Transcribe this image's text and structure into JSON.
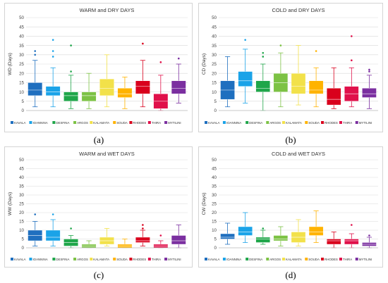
{
  "panel_labels": [
    "(a)",
    "(b)",
    "(c)",
    "(d)"
  ],
  "legend_colors": [
    "#1f6fbf",
    "#1aa3e8",
    "#1fa64a",
    "#7cc244",
    "#f2e14a",
    "#ffb300",
    "#d9001c",
    "#e0104a",
    "#7b2fa0"
  ],
  "chart_data": [
    {
      "type": "box",
      "title": "WARM and DRY DAYS",
      "ylabel": "WD (Days)",
      "ylim": [
        0,
        50
      ],
      "yticks": [
        "0",
        "5",
        "10",
        "15",
        "20",
        "25",
        "30",
        "35",
        "40",
        "45",
        "50"
      ],
      "categories": [
        "KAVALA",
        "IOANNINA",
        "DESFINA",
        "ARGOS",
        "KALAMATA",
        "SOUDA",
        "RHODES",
        "THIRA",
        "MYTILINI"
      ],
      "grid": true,
      "legend": "bottom",
      "boxes": [
        {
          "min": 2,
          "q1": 8,
          "median": 11,
          "q3": 15,
          "max": 27,
          "outliers": [
            30,
            32
          ]
        },
        {
          "min": 2,
          "q1": 8,
          "median": 10,
          "q3": 13,
          "max": 23,
          "outliers": [
            29,
            32,
            38
          ]
        },
        {
          "min": 1,
          "q1": 5,
          "median": 8,
          "q3": 10,
          "max": 19,
          "outliers": [
            21,
            35
          ]
        },
        {
          "min": 1,
          "q1": 5,
          "median": 8,
          "q3": 10,
          "max": 20,
          "outliers": []
        },
        {
          "min": 2,
          "q1": 8,
          "median": 12,
          "q3": 17,
          "max": 30,
          "outliers": []
        },
        {
          "min": 1,
          "q1": 7,
          "median": 9,
          "q3": 12,
          "max": 18,
          "outliers": []
        },
        {
          "min": 2,
          "q1": 9,
          "median": 13,
          "q3": 16,
          "max": 27,
          "outliers": [
            36
          ]
        },
        {
          "min": 0,
          "q1": 1,
          "median": 5,
          "q3": 9,
          "max": 19,
          "outliers": [
            26
          ]
        },
        {
          "min": 4,
          "q1": 9,
          "median": 12,
          "q3": 16,
          "max": 25,
          "outliers": [
            28
          ]
        }
      ]
    },
    {
      "type": "box",
      "title": "COLD and DRY DAYS",
      "ylabel": "CD (Days)",
      "ylim": [
        0,
        50
      ],
      "yticks": [
        "0",
        "5",
        "10",
        "15",
        "20",
        "25",
        "30",
        "35",
        "40",
        "45",
        "50"
      ],
      "categories": [
        "KAVALA",
        "IOANNINA",
        "DESFINA",
        "ARGOS",
        "KALAMATA",
        "SOUDA",
        "RHODES",
        "THIRA",
        "MYTILINI"
      ],
      "grid": true,
      "legend": "bottom",
      "boxes": [
        {
          "min": 2,
          "q1": 6,
          "median": 11,
          "q3": 16,
          "max": 29,
          "outliers": []
        },
        {
          "min": 4,
          "q1": 13,
          "median": 16,
          "q3": 21,
          "max": 33,
          "outliers": [
            38
          ]
        },
        {
          "min": 0,
          "q1": 10,
          "median": 12,
          "q3": 16,
          "max": 25,
          "outliers": [
            29,
            31
          ]
        },
        {
          "min": 2,
          "q1": 10,
          "median": 15,
          "q3": 20,
          "max": 31,
          "outliers": [
            35
          ]
        },
        {
          "min": 3,
          "q1": 9,
          "median": 13,
          "q3": 20,
          "max": 35,
          "outliers": []
        },
        {
          "min": 2,
          "q1": 9,
          "median": 11,
          "q3": 16,
          "max": 23,
          "outliers": [
            32
          ]
        },
        {
          "min": 1,
          "q1": 3,
          "median": 6,
          "q3": 12,
          "max": 23,
          "outliers": []
        },
        {
          "min": 2,
          "q1": 5,
          "median": 9,
          "q3": 13,
          "max": 23,
          "outliers": [
            27,
            40
          ]
        },
        {
          "min": 1,
          "q1": 7,
          "median": 9,
          "q3": 12,
          "max": 19,
          "outliers": [
            21,
            22
          ]
        }
      ]
    },
    {
      "type": "box",
      "title": "WARM and WET DAYS",
      "ylabel": "WW (Days)",
      "ylim": [
        0,
        50
      ],
      "yticks": [
        "0",
        "5",
        "10",
        "15",
        "20",
        "25",
        "30",
        "35",
        "40",
        "45",
        "50"
      ],
      "categories": [
        "KAVALA",
        "IOANNINA",
        "DESFINA",
        "ARGOS",
        "KALAMATA",
        "SOUDA",
        "RHODES",
        "THIRA",
        "MYTILINI"
      ],
      "grid": true,
      "legend": "bottom",
      "boxes": [
        {
          "min": 1,
          "q1": 4,
          "median": 7,
          "q3": 10,
          "max": 15,
          "outliers": [
            19
          ]
        },
        {
          "min": 1,
          "q1": 4,
          "median": 6,
          "q3": 10,
          "max": 16,
          "outliers": [
            19
          ]
        },
        {
          "min": 0,
          "q1": 1,
          "median": 3,
          "q3": 5,
          "max": 7,
          "outliers": [
            11
          ]
        },
        {
          "min": 0,
          "q1": 0,
          "median": 1,
          "q3": 2,
          "max": 4,
          "outliers": []
        },
        {
          "min": 1,
          "q1": 2,
          "median": 4,
          "q3": 6,
          "max": 11,
          "outliers": []
        },
        {
          "min": 0,
          "q1": 0,
          "median": 1,
          "q3": 2,
          "max": 5,
          "outliers": []
        },
        {
          "min": 1,
          "q1": 3,
          "median": 4,
          "q3": 6,
          "max": 10,
          "outliers": [
            11,
            13
          ]
        },
        {
          "min": 0,
          "q1": 0,
          "median": 1,
          "q3": 2,
          "max": 4,
          "outliers": [
            7
          ]
        },
        {
          "min": 0,
          "q1": 2,
          "median": 4,
          "q3": 7,
          "max": 13,
          "outliers": []
        }
      ]
    },
    {
      "type": "box",
      "title": "COLD and WET DAYS",
      "ylabel": "CW (Days)",
      "ylim": [
        0,
        50
      ],
      "yticks": [
        "0",
        "5",
        "10",
        "15",
        "20",
        "25",
        "30",
        "35",
        "40",
        "45",
        "50"
      ],
      "categories": [
        "KAVALA",
        "IOANNINA",
        "DESFINA",
        "ARGOS",
        "KALAMATA",
        "SOUDA",
        "RHODES",
        "THIRA",
        "MYTILINI"
      ],
      "grid": true,
      "legend": "bottom",
      "boxes": [
        {
          "min": 2,
          "q1": 5,
          "median": 6,
          "q3": 8,
          "max": 14,
          "outliers": []
        },
        {
          "min": 3,
          "q1": 7,
          "median": 9,
          "q3": 12,
          "max": 20,
          "outliers": []
        },
        {
          "min": 2,
          "q1": 3,
          "median": 5,
          "q3": 6,
          "max": 10,
          "outliers": [
            11
          ]
        },
        {
          "min": 1,
          "q1": 4,
          "median": 5,
          "q3": 7,
          "max": 12,
          "outliers": []
        },
        {
          "min": 1,
          "q1": 3,
          "median": 6,
          "q3": 9,
          "max": 16,
          "outliers": []
        },
        {
          "min": 3,
          "q1": 7,
          "median": 9,
          "q3": 12,
          "max": 21,
          "outliers": []
        },
        {
          "min": 0,
          "q1": 2,
          "median": 4,
          "q3": 5,
          "max": 9,
          "outliers": []
        },
        {
          "min": 0,
          "q1": 2,
          "median": 4,
          "q3": 5,
          "max": 8,
          "outliers": [
            13
          ]
        },
        {
          "min": 0,
          "q1": 1,
          "median": 2,
          "q3": 3,
          "max": 6,
          "outliers": [
            7
          ]
        }
      ]
    }
  ]
}
